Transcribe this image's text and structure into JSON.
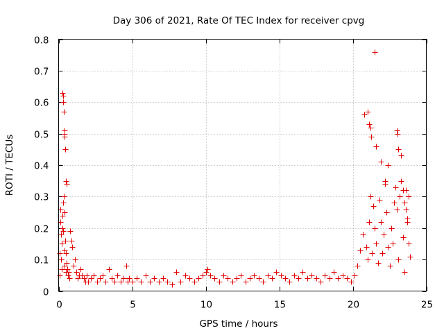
{
  "chart_data": {
    "type": "scatter",
    "title": "Day 306 of 2021, Rate Of TEC Index for receiver cpvg",
    "xlabel": "GPS time / hours",
    "ylabel": "ROTI / TECUs",
    "xlim": [
      0,
      25
    ],
    "ylim": [
      0,
      0.8
    ],
    "xticks": [
      0,
      5,
      10,
      15,
      20,
      25
    ],
    "xtick_labels": [
      "0",
      "5",
      "10",
      "15",
      "20",
      "25"
    ],
    "yticks": [
      0,
      0.1,
      0.2,
      0.3,
      0.4,
      0.5,
      0.6,
      0.7,
      0.8
    ],
    "ytick_labels": [
      "0",
      "0.1",
      "0.2",
      "0.3",
      "0.4",
      "0.5",
      "0.6",
      "0.7",
      "0.8"
    ],
    "grid": true,
    "marker": "plus",
    "series": [
      {
        "name": "ROTI",
        "color": "#e00000",
        "x": [
          0.05,
          0.08,
          0.1,
          0.12,
          0.15,
          0.18,
          0.2,
          0.22,
          0.25,
          0.28,
          0.3,
          0.32,
          0.35,
          0.38,
          0.4,
          0.42,
          0.45,
          0.48,
          0.5,
          0.55,
          0.6,
          0.65,
          0.7,
          0.75,
          0.8,
          0.85,
          0.9,
          0.25,
          0.3,
          0.32,
          0.35,
          0.38,
          0.4,
          0.42,
          0.45,
          0.5,
          0.52,
          1.0,
          1.1,
          1.2,
          1.3,
          1.4,
          1.5,
          1.6,
          1.7,
          1.8,
          1.9,
          2.0,
          2.2,
          2.4,
          2.6,
          2.8,
          3.0,
          3.2,
          3.4,
          3.6,
          3.8,
          4.0,
          4.2,
          4.4,
          4.6,
          4.7,
          4.8,
          5.0,
          5.3,
          5.6,
          5.9,
          6.2,
          6.5,
          6.8,
          7.1,
          7.4,
          7.7,
          8.0,
          8.3,
          8.6,
          8.9,
          9.2,
          9.5,
          9.8,
          10.0,
          10.1,
          10.3,
          10.6,
          10.9,
          11.2,
          11.5,
          11.8,
          12.1,
          12.4,
          12.7,
          13.0,
          13.3,
          13.6,
          13.9,
          14.2,
          14.5,
          14.8,
          15.1,
          15.4,
          15.7,
          16.0,
          16.3,
          16.6,
          16.9,
          17.2,
          17.5,
          17.8,
          18.1,
          18.4,
          18.7,
          19.0,
          19.3,
          19.6,
          19.9,
          20.1,
          20.3,
          20.5,
          20.7,
          20.9,
          21.0,
          21.1,
          21.2,
          21.3,
          21.4,
          21.5,
          21.6,
          21.7,
          21.8,
          21.9,
          22.0,
          22.1,
          22.2,
          22.3,
          22.4,
          22.5,
          22.6,
          22.7,
          22.8,
          22.9,
          23.0,
          23.1,
          23.2,
          23.3,
          23.4,
          23.5,
          23.6,
          23.7,
          23.8,
          23.9,
          20.8,
          21.0,
          21.1,
          21.2,
          21.25,
          21.5,
          21.6,
          21.9,
          22.2,
          22.4,
          22.9,
          23.0,
          23.05,
          23.1,
          23.3,
          23.4,
          23.5,
          23.6,
          23.7,
          23.8
        ],
        "y": [
          0.05,
          0.12,
          0.22,
          0.26,
          0.18,
          0.1,
          0.07,
          0.15,
          0.2,
          0.24,
          0.19,
          0.28,
          0.3,
          0.25,
          0.13,
          0.08,
          0.16,
          0.06,
          0.12,
          0.09,
          0.07,
          0.05,
          0.06,
          0.04,
          0.19,
          0.16,
          0.14,
          0.63,
          0.62,
          0.6,
          0.57,
          0.51,
          0.5,
          0.49,
          0.45,
          0.35,
          0.34,
          0.08,
          0.1,
          0.06,
          0.04,
          0.05,
          0.07,
          0.05,
          0.04,
          0.03,
          0.05,
          0.03,
          0.04,
          0.05,
          0.03,
          0.04,
          0.05,
          0.03,
          0.07,
          0.04,
          0.03,
          0.05,
          0.03,
          0.04,
          0.08,
          0.03,
          0.04,
          0.03,
          0.04,
          0.03,
          0.05,
          0.03,
          0.04,
          0.03,
          0.04,
          0.03,
          0.02,
          0.06,
          0.03,
          0.05,
          0.04,
          0.03,
          0.04,
          0.05,
          0.06,
          0.07,
          0.05,
          0.04,
          0.03,
          0.05,
          0.04,
          0.03,
          0.04,
          0.05,
          0.03,
          0.04,
          0.05,
          0.04,
          0.03,
          0.05,
          0.04,
          0.06,
          0.05,
          0.04,
          0.03,
          0.05,
          0.04,
          0.06,
          0.04,
          0.05,
          0.04,
          0.03,
          0.05,
          0.04,
          0.06,
          0.04,
          0.05,
          0.04,
          0.03,
          0.05,
          0.08,
          0.13,
          0.18,
          0.14,
          0.1,
          0.22,
          0.3,
          0.12,
          0.27,
          0.2,
          0.15,
          0.09,
          0.29,
          0.22,
          0.12,
          0.18,
          0.34,
          0.25,
          0.14,
          0.08,
          0.2,
          0.15,
          0.28,
          0.33,
          0.26,
          0.1,
          0.3,
          0.35,
          0.17,
          0.06,
          0.32,
          0.22,
          0.15,
          0.11,
          0.56,
          0.57,
          0.53,
          0.52,
          0.49,
          0.76,
          0.46,
          0.41,
          0.35,
          0.4,
          0.33,
          0.51,
          0.5,
          0.45,
          0.43,
          0.32,
          0.28,
          0.26,
          0.23,
          0.3
        ]
      }
    ]
  }
}
